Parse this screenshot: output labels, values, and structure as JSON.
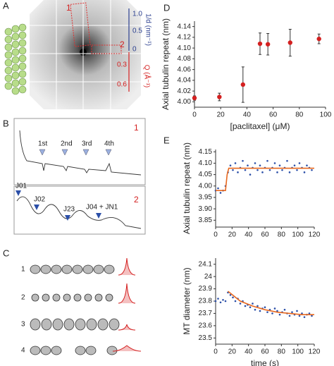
{
  "panels": {
    "A": {
      "letter": "A",
      "box1": "1",
      "box2": "2",
      "blue_axis": "1/d (nm⁻¹)",
      "blue_ticks": [
        "1.0",
        "0.5",
        "0"
      ],
      "red_axis": "Q (Å⁻¹)",
      "red_ticks": [
        "0.3",
        "0.6"
      ]
    },
    "B": {
      "letter": "B",
      "trace1": "1",
      "orders": [
        "1st",
        "2nd",
        "3rd",
        "4th"
      ],
      "trace2": "2",
      "bessel": [
        "J01",
        "J02",
        "J23",
        "J04 + JN1"
      ]
    },
    "C": {
      "letter": "C",
      "rows": [
        "1",
        "2",
        "3",
        "4"
      ]
    },
    "D": {
      "letter": "D"
    },
    "E": {
      "letter": "E"
    }
  },
  "chart_data": [
    {
      "type": "scatter",
      "ylabel": "Axial tubulin repeat (nm)",
      "xlabel": "[paclitaxel] (μM)",
      "xlim": [
        0,
        100
      ],
      "xticks": [
        0,
        20,
        40,
        60,
        80,
        100
      ],
      "ylim": [
        3.99,
        4.15
      ],
      "yticks": [
        {
          "value": 4.0,
          "label": "4.00"
        },
        4.02,
        4.04,
        4.06,
        4.08,
        {
          "value": 4.1,
          "label": "4.10"
        },
        4.12,
        4.14
      ],
      "series": [
        {
          "color": "#d42020",
          "x": [
            0,
            19,
            37,
            50,
            56,
            73,
            95
          ],
          "values": [
            4.007,
            4.009,
            4.032,
            4.108,
            4.107,
            4.11,
            4.117
          ],
          "errors": [
            0.004,
            0.007,
            0.033,
            0.02,
            0.02,
            0.025,
            0.009
          ]
        }
      ]
    },
    {
      "type": "scatter",
      "ylabel": "Axial tubulin repeat (nm)",
      "xlim": [
        0,
        120
      ],
      "xticks": [
        0,
        20,
        40,
        60,
        80,
        100,
        120
      ],
      "ylim": [
        3.82,
        4.16
      ],
      "yticks": [
        3.85,
        {
          "value": 3.9,
          "label": "3.90"
        },
        3.95,
        {
          "value": 4.0,
          "label": "4.00"
        },
        4.05,
        {
          "value": 4.1,
          "label": "4.10"
        },
        4.15
      ],
      "series": [
        {
          "color": "#2b4fa8",
          "x": [
            0,
            3,
            6,
            9,
            12,
            15,
            18,
            21,
            24,
            27,
            30,
            33,
            36,
            39,
            42,
            45,
            48,
            51,
            54,
            57,
            60,
            63,
            66,
            69,
            72,
            75,
            78,
            81,
            84,
            87,
            90,
            93,
            96,
            99,
            102,
            105,
            108,
            111,
            114,
            117
          ],
          "values": [
            3.98,
            3.99,
            3.97,
            3.98,
            4.0,
            4.06,
            4.09,
            4.07,
            4.1,
            4.06,
            4.08,
            4.11,
            4.07,
            4.09,
            4.05,
            4.08,
            4.1,
            4.07,
            4.09,
            4.06,
            4.08,
            4.11,
            4.07,
            4.08,
            4.1,
            4.06,
            4.09,
            4.07,
            4.08,
            4.11,
            4.06,
            4.08,
            4.09,
            4.07,
            4.1,
            4.08,
            4.06,
            4.09,
            4.08,
            4.07
          ]
        },
        {
          "type": "line",
          "color": "#e8681e",
          "x": [
            0,
            12,
            14,
            16,
            120
          ],
          "values": [
            3.98,
            3.98,
            4.05,
            4.078,
            4.078
          ]
        }
      ]
    },
    {
      "type": "scatter",
      "ylabel": "MT diameter (nm)",
      "xlabel": "time (s)",
      "xlim": [
        0,
        120
      ],
      "xticks": [
        0,
        20,
        40,
        60,
        80,
        100,
        120
      ],
      "ylim": [
        23.45,
        24.15
      ],
      "yticks": [
        23.5,
        23.6,
        23.7,
        23.8,
        23.9,
        24,
        24.1
      ],
      "series": [
        {
          "color": "#2b4fa8",
          "x": [
            0,
            3,
            6,
            9,
            12,
            15,
            18,
            21,
            24,
            27,
            30,
            33,
            36,
            39,
            42,
            45,
            48,
            51,
            54,
            57,
            60,
            63,
            66,
            69,
            72,
            75,
            78,
            81,
            84,
            87,
            90,
            93,
            96,
            99,
            102,
            105,
            108,
            111,
            114,
            117
          ],
          "values": [
            23.8,
            23.82,
            23.79,
            23.81,
            23.8,
            23.87,
            23.85,
            23.83,
            23.8,
            23.82,
            23.78,
            23.8,
            23.76,
            23.77,
            23.75,
            23.78,
            23.73,
            23.76,
            23.72,
            23.74,
            23.75,
            23.71,
            23.73,
            23.7,
            23.74,
            23.72,
            23.69,
            23.71,
            23.73,
            23.7,
            23.68,
            23.71,
            23.69,
            23.72,
            23.68,
            23.7,
            23.67,
            23.69,
            23.7,
            23.68
          ]
        },
        {
          "type": "line",
          "color": "#e8681e",
          "x": [
            15,
            30,
            45,
            60,
            75,
            90,
            105,
            120
          ],
          "values": [
            23.88,
            23.8,
            23.76,
            23.73,
            23.71,
            23.7,
            23.69,
            23.69
          ]
        }
      ]
    }
  ]
}
